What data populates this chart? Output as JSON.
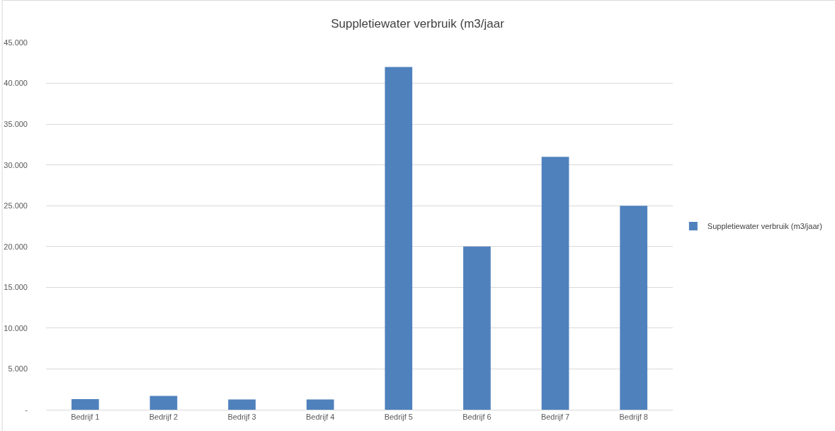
{
  "chart_data": {
    "type": "bar",
    "title": "Suppletiewater verbruik (m3/jaar",
    "categories": [
      "Bedrijf 1",
      "Bedrijf 2",
      "Bedrijf 3",
      "Bedrijf 4",
      "Bedrijf 5",
      "Bedrijf 6",
      "Bedrijf 7",
      "Bedrijf 8"
    ],
    "series": [
      {
        "name": "Suppletiewater verbruik (m3/jaar)",
        "color": "#4f81bd",
        "values": [
          1300,
          1700,
          1250,
          1250,
          42000,
          20000,
          31000,
          25000
        ]
      }
    ],
    "ylim": [
      0,
      45000
    ],
    "yticks": [
      {
        "value": 0,
        "label": "-"
      },
      {
        "value": 5000,
        "label": "5.000"
      },
      {
        "value": 10000,
        "label": "10.000"
      },
      {
        "value": 15000,
        "label": "15.000"
      },
      {
        "value": 20000,
        "label": "20.000"
      },
      {
        "value": 25000,
        "label": "25.000"
      },
      {
        "value": 30000,
        "label": "30.000"
      },
      {
        "value": 35000,
        "label": "35.000"
      },
      {
        "value": 40000,
        "label": "40.000"
      },
      {
        "value": 45000,
        "label": "45.000"
      }
    ],
    "grid": "y",
    "legend": "right"
  }
}
